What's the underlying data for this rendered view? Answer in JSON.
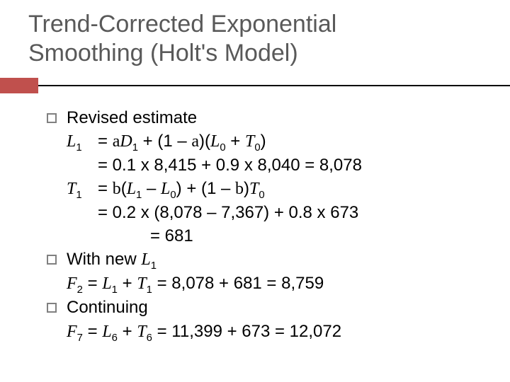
{
  "colors": {
    "title_text": "#595959",
    "accent": "#c0504d",
    "rule": "#000000",
    "body_text": "#000000",
    "bullet_border": "#808080",
    "background": "#ffffff"
  },
  "typography": {
    "title_fontsize": 34,
    "body_fontsize": 24,
    "title_weight": 400
  },
  "title_lines": [
    "Trend-Corrected Exponential",
    "Smoothing (Holt's Model)"
  ],
  "bullets": {
    "b1": {
      "heading": "Revised estimate",
      "eq1": {
        "lhs_var": "L",
        "lhs_sub": "1",
        "line1_a": "= ",
        "alpha": "a",
        "line1_b": "D",
        "line1_b_sub": "1",
        "line1_c": " + (1 – ",
        "line1_d": ")(",
        "line1_e": "L",
        "line1_e_sub": "0",
        "line1_f": " + ",
        "line1_g": "T",
        "line1_g_sub": "0",
        "line1_h": ")",
        "line2": "= 0.1 x 8,415 + 0.9 x 8,040 = 8,078"
      },
      "eq2": {
        "lhs_var": "T",
        "lhs_sub": "1",
        "line1_a": "= ",
        "beta": "b",
        "line1_b": "(",
        "line1_c": "L",
        "line1_c_sub": "1",
        "line1_d": " – ",
        "line1_e": "L",
        "line1_e_sub": "0",
        "line1_f": ") + (1 – ",
        "line1_g": ")",
        "line1_h": "T",
        "line1_h_sub": "0",
        "line2": "= 0.2 x (8,078 – 7,367) + 0.8 x 673",
        "line3": "= 681"
      }
    },
    "b2": {
      "heading_a": "With new ",
      "heading_var": "L",
      "heading_sub": "1",
      "eq_a": "F",
      "eq_a_sub": "2",
      "eq_b": " = ",
      "eq_c": "L",
      "eq_c_sub": "1",
      "eq_d": " + ",
      "eq_e": "T",
      "eq_e_sub": "1",
      "eq_f": " = 8,078 + 681 = 8,759"
    },
    "b3": {
      "heading": "Continuing",
      "eq_a": "F",
      "eq_a_sub": "7",
      "eq_b": " = ",
      "eq_c": "L",
      "eq_c_sub": "6",
      "eq_d": " + ",
      "eq_e": "T",
      "eq_e_sub": "6",
      "eq_f": " = 11,399 + 673 = 12,072"
    }
  }
}
